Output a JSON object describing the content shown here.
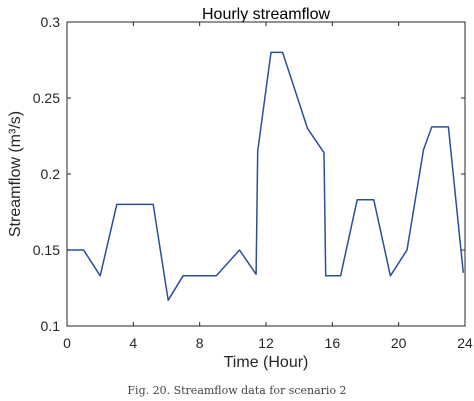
{
  "chart_data": {
    "type": "line",
    "title": "Hourly streamflow",
    "xlabel": "Time (Hour)",
    "ylabel": "Streamflow (m³/s)",
    "xlim": [
      0,
      24
    ],
    "ylim": [
      0.1,
      0.3
    ],
    "xticks": [
      0,
      4,
      8,
      12,
      16,
      20,
      24
    ],
    "yticks": [
      0.1,
      0.15,
      0.2,
      0.25,
      0.3
    ],
    "ytick_labels": [
      "0.1",
      "0.15",
      "0.2",
      "0.25",
      "0.3"
    ],
    "grid": false,
    "series": [
      {
        "color": "#2a4f9a",
        "x": [
          0,
          1,
          2,
          3,
          4,
          5.2,
          6.1,
          7,
          8,
          9,
          10.4,
          11.4,
          11.5,
          12.3,
          13,
          14.5,
          15.5,
          15.6,
          16.5,
          17.5,
          18.5,
          19.5,
          20.5,
          21.5,
          22,
          23,
          23.9
        ],
        "y": [
          0.15,
          0.15,
          0.133,
          0.18,
          0.18,
          0.18,
          0.117,
          0.133,
          0.133,
          0.133,
          0.15,
          0.134,
          0.215,
          0.28,
          0.28,
          0.23,
          0.214,
          0.133,
          0.133,
          0.183,
          0.183,
          0.133,
          0.15,
          0.216,
          0.231,
          0.231,
          0.135
        ]
      }
    ]
  },
  "caption": "Fig. 20. Streamflow data for scenario 2"
}
